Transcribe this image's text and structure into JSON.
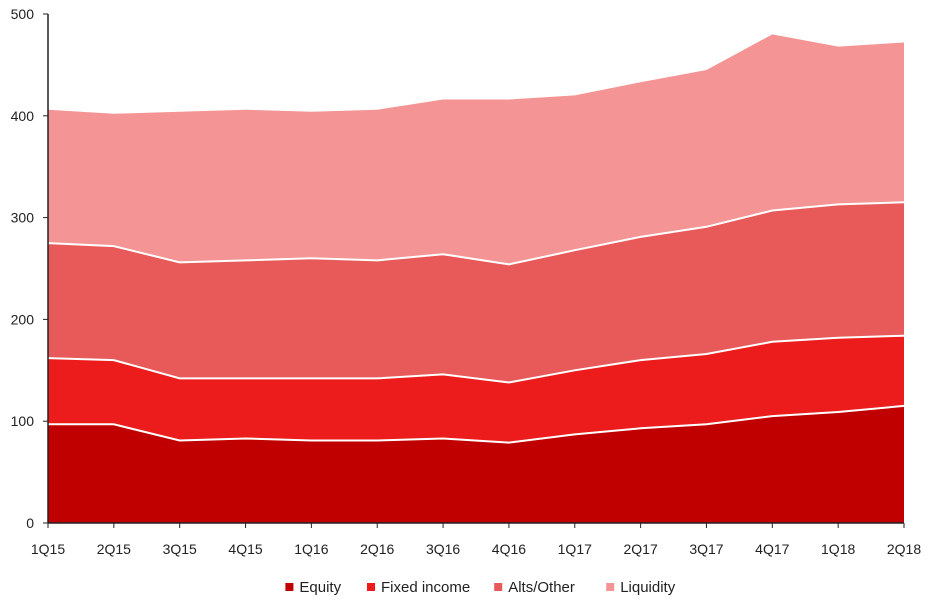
{
  "chart_data": {
    "type": "area",
    "stacked": true,
    "categories": [
      "1Q15",
      "2Q15",
      "3Q15",
      "4Q15",
      "1Q16",
      "2Q16",
      "3Q16",
      "4Q16",
      "1Q17",
      "2Q17",
      "3Q17",
      "4Q17",
      "1Q18",
      "2Q18"
    ],
    "series": [
      {
        "name": "Equity",
        "color": "#c00000",
        "values": [
          97,
          97,
          81,
          83,
          81,
          81,
          83,
          79,
          87,
          93,
          97,
          105,
          109,
          115
        ]
      },
      {
        "name": "Fixed income",
        "color": "#ec1c1c",
        "values": [
          65,
          63,
          61,
          59,
          61,
          61,
          63,
          59,
          63,
          67,
          69,
          73,
          73,
          69
        ]
      },
      {
        "name": "Alts/Other",
        "color": "#e85a5a",
        "values": [
          113,
          112,
          114,
          116,
          118,
          116,
          118,
          116,
          118,
          121,
          125,
          129,
          131,
          131
        ]
      },
      {
        "name": "Liquidity",
        "color": "#f49494",
        "values": [
          131,
          130,
          148,
          148,
          144,
          148,
          152,
          162,
          152,
          152,
          154,
          173,
          155,
          157
        ]
      }
    ],
    "yticks": [
      "0",
      "100",
      "200",
      "300",
      "400",
      "500"
    ],
    "ylim": [
      0,
      500
    ],
    "title": "",
    "xlabel": "",
    "ylabel": "",
    "grid": false,
    "legend_position": "bottom"
  }
}
